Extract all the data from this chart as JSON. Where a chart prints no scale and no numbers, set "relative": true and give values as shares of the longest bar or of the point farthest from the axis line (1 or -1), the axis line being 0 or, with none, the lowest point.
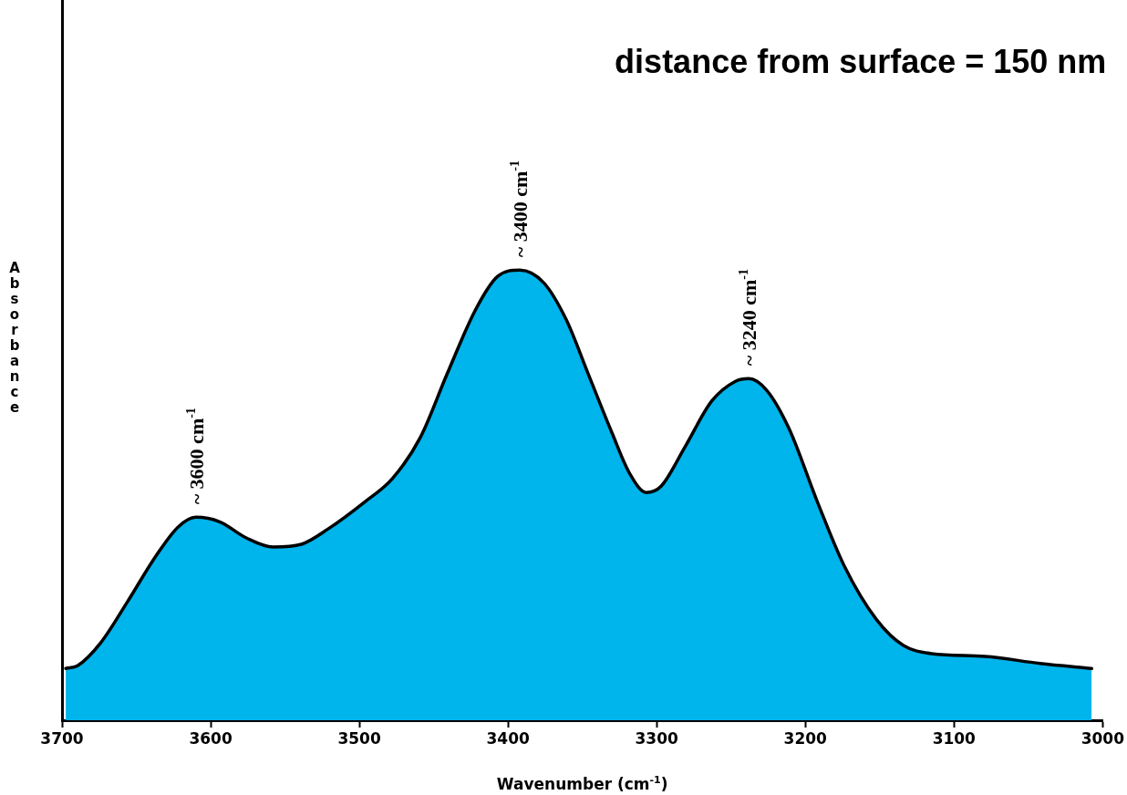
{
  "chart_data": {
    "type": "area",
    "title": "distance from surface = 150 nm",
    "xlabel": "Wavenumber (cm$^{-1}$)",
    "ylabel": "Absorbance",
    "relative": true,
    "x": [
      3697.5,
      3689.6,
      3674,
      3656,
      3637,
      3622,
      3610,
      3594,
      3576,
      3558,
      3539,
      3521,
      3496,
      3478,
      3459,
      3441,
      3422,
      3407,
      3392,
      3376,
      3361,
      3346,
      3330,
      3318,
      3307,
      3297,
      3281,
      3263,
      3247,
      3238,
      3226,
      3211,
      3192,
      3174,
      3152,
      3134,
      3115,
      3079,
      3042,
      3007.4
    ],
    "series": [
      {
        "color": "#00b4ec",
        "values": [
          0.115,
          0.121,
          0.172,
          0.263,
          0.364,
          0.429,
          0.451,
          0.441,
          0.405,
          0.385,
          0.391,
          0.425,
          0.486,
          0.536,
          0.628,
          0.769,
          0.911,
          0.986,
          1,
          0.972,
          0.891,
          0.769,
          0.638,
          0.547,
          0.506,
          0.52,
          0.607,
          0.709,
          0.753,
          0.759,
          0.733,
          0.648,
          0.486,
          0.344,
          0.223,
          0.166,
          0.148,
          0.142,
          0.126,
          0.115
        ]
      }
    ],
    "xlim": [
      3700,
      3000
    ],
    "xticks": [
      3700,
      3600,
      3500,
      3400,
      3300,
      3200,
      3100,
      3000
    ],
    "annotations": [
      {
        "text": "~ 3600 cm$^{-1}$",
        "x": 3610,
        "y": 0.451
      },
      {
        "text": "~ 3400 cm$^{-1}$",
        "x": 3392,
        "y": 1
      },
      {
        "text": "~ 3240 cm$^{-1}$",
        "x": 3238,
        "y": 0.759
      }
    ],
    "grid": false,
    "legend": false
  }
}
